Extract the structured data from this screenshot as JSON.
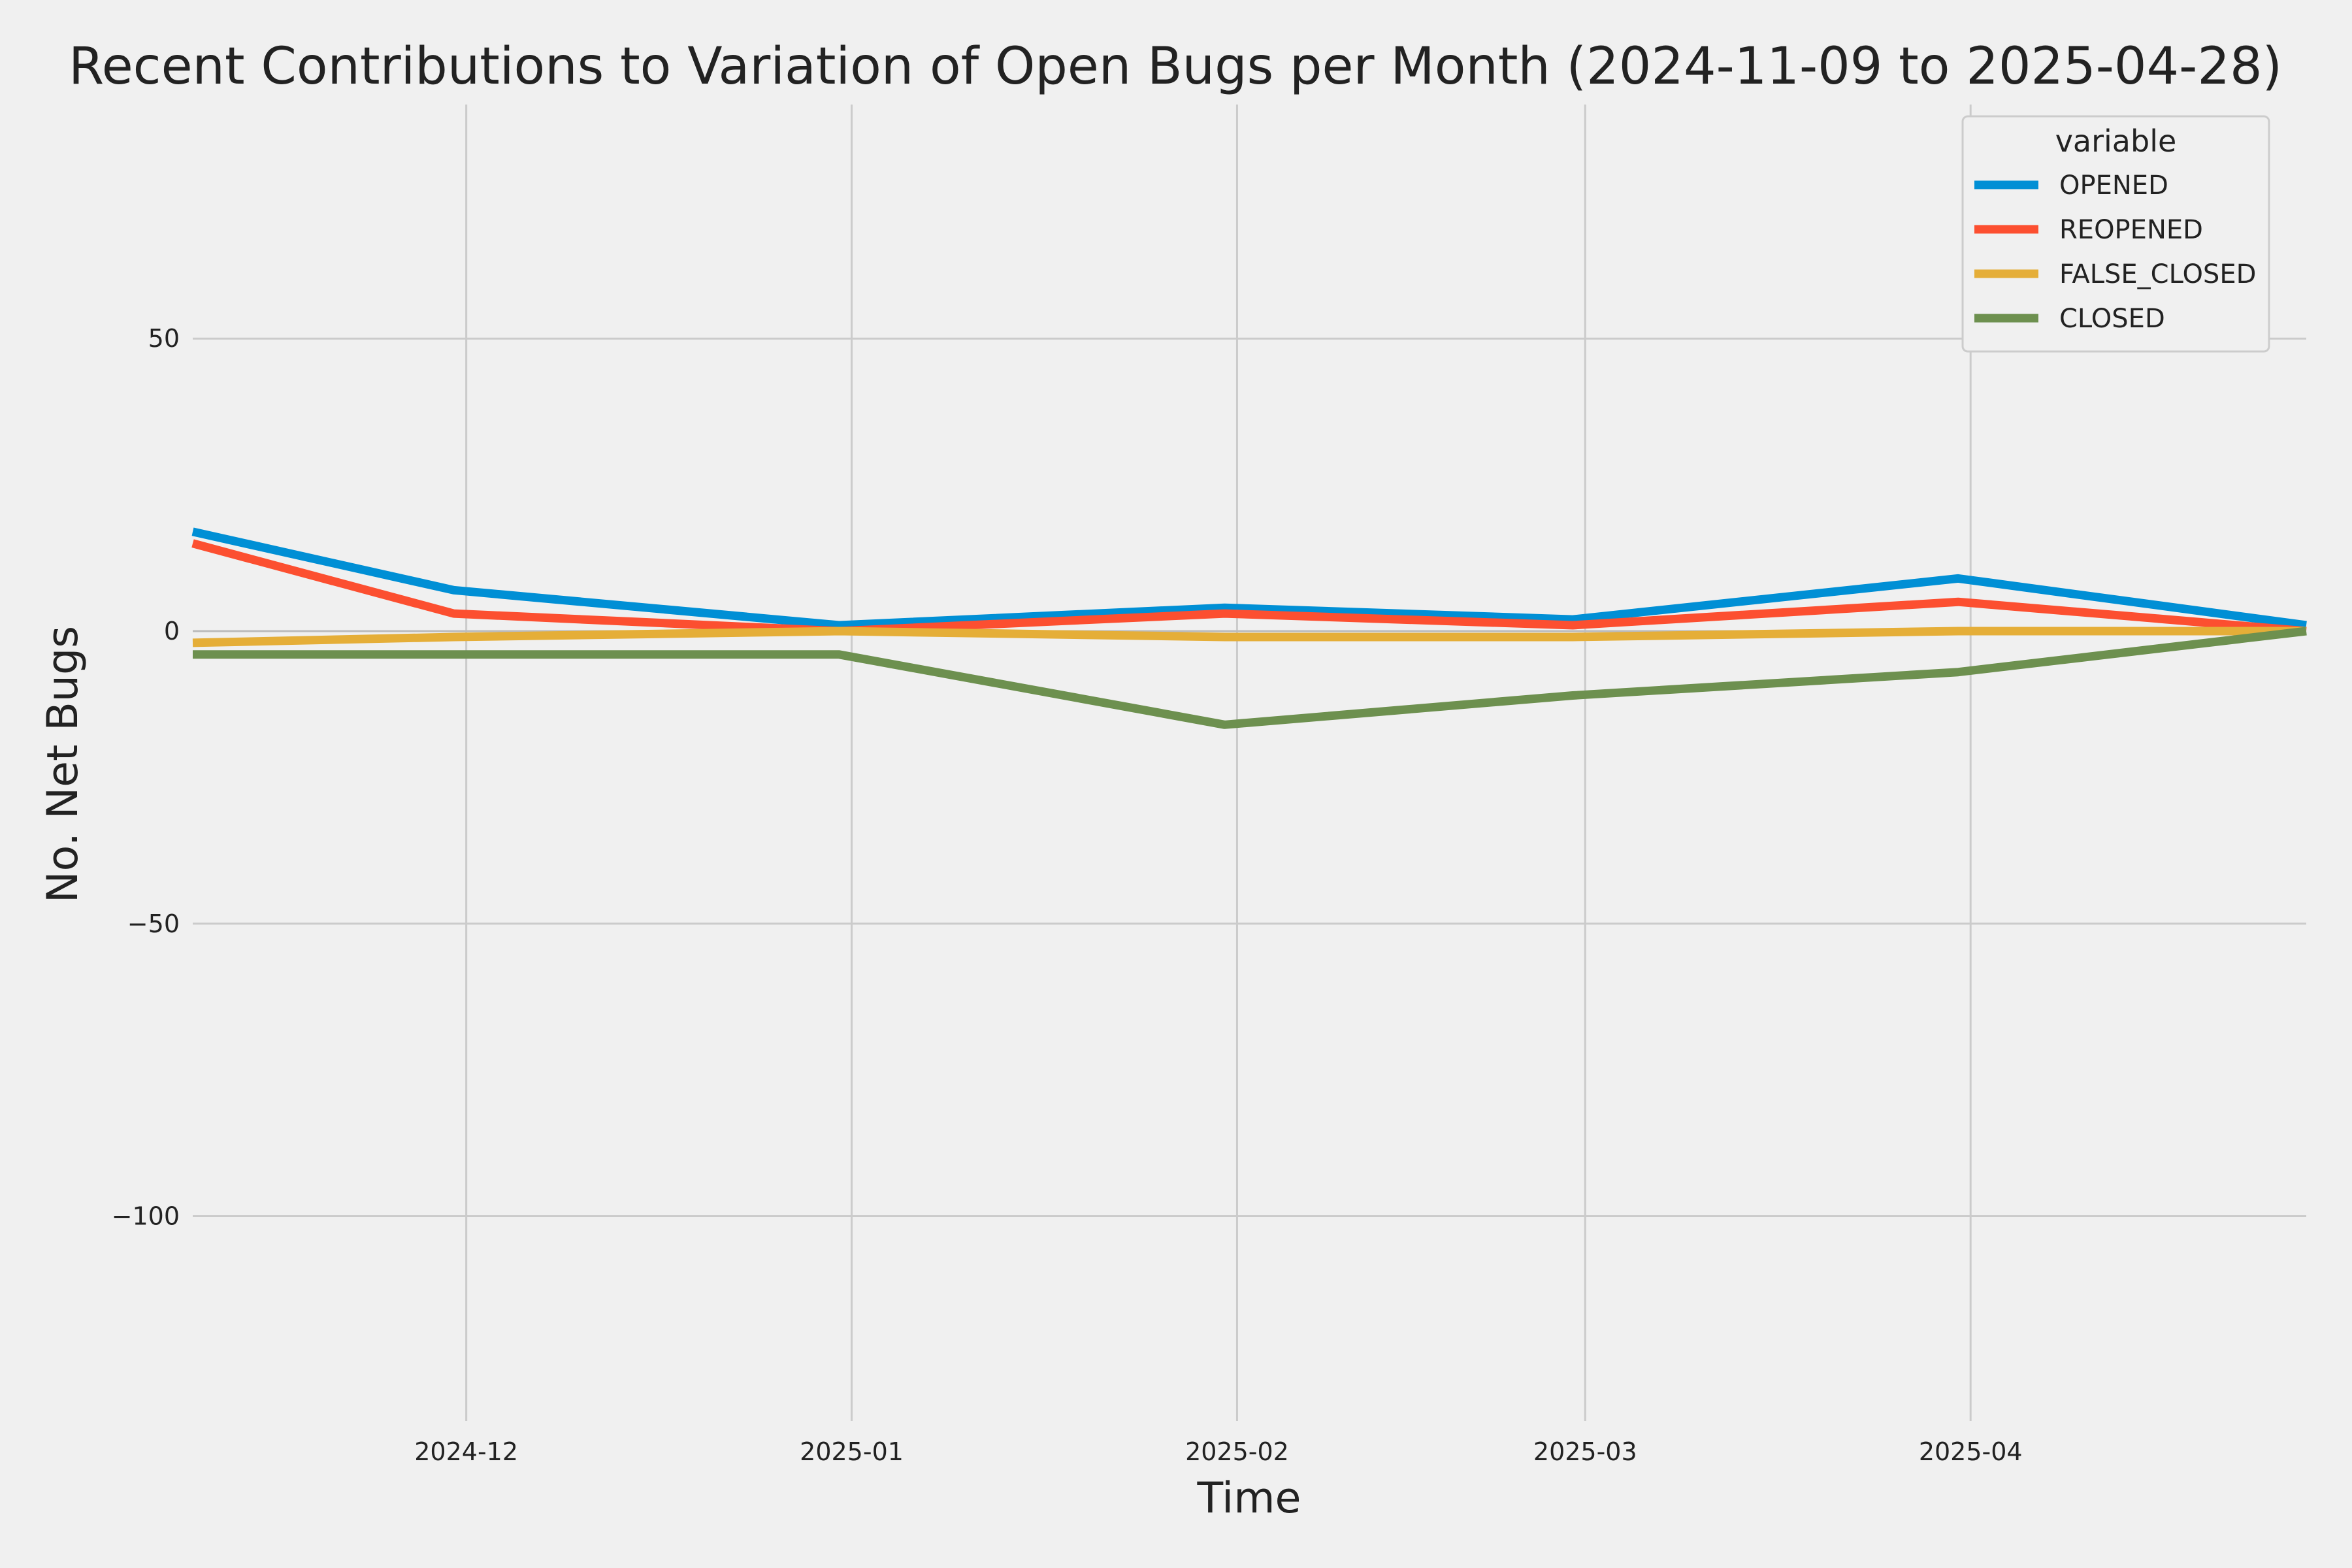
{
  "chart_data": {
    "type": "line",
    "title": "Recent Contributions to Variation of Open Bugs per Month (2024-11-09 to 2025-04-28)",
    "xlabel": "Time",
    "ylabel": "No. Net Bugs",
    "x": [
      "2024-11-09",
      "2024-11-30",
      "2024-12-31",
      "2025-01-31",
      "2025-02-28",
      "2025-03-31",
      "2025-04-28"
    ],
    "xlim": [
      "2024-11-09",
      "2025-04-28"
    ],
    "ylim": [
      -135,
      90
    ],
    "x_ticks": [
      "2024-12",
      "2025-01",
      "2025-02",
      "2025-03",
      "2025-04"
    ],
    "y_ticks": [
      50,
      0,
      -50,
      -100
    ],
    "y_tick_labels": [
      "50",
      "0",
      "−50",
      "−100"
    ],
    "grid": true,
    "legend": {
      "title": "variable",
      "placement": "top-right"
    },
    "series": [
      {
        "name": "OPENED",
        "color": "#008fd5",
        "values": [
          17,
          7,
          1,
          4,
          2,
          9,
          1
        ]
      },
      {
        "name": "REOPENED",
        "color": "#fc4f30",
        "values": [
          15,
          3,
          0,
          3,
          1,
          5,
          0
        ]
      },
      {
        "name": "FALSE_CLOSED",
        "color": "#e5ae38",
        "values": [
          -2,
          -1,
          0,
          -1,
          -1,
          0,
          0
        ]
      },
      {
        "name": "CLOSED",
        "color": "#6d904f",
        "values": [
          -4,
          -4,
          -4,
          -16,
          -11,
          -7,
          0
        ]
      }
    ]
  }
}
